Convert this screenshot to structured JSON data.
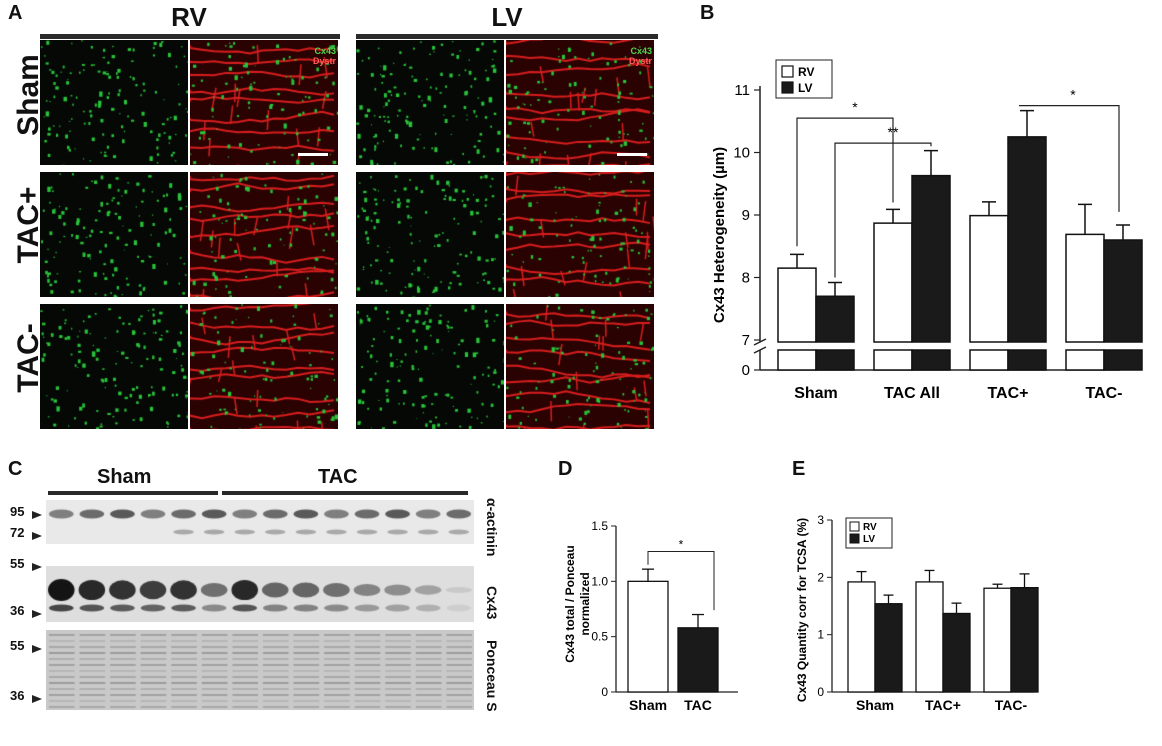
{
  "panels": {
    "A": {
      "letter": "A",
      "columns": [
        "RV",
        "LV"
      ],
      "rows": [
        "Sham",
        "TAC+",
        "TAC-"
      ],
      "legend_top": "Cx43",
      "legend_bottom": "Dystr",
      "colors": {
        "green": "#29c43a",
        "red": "#d81e1e"
      }
    },
    "B": {
      "letter": "B"
    },
    "C": {
      "letter": "C",
      "groups": [
        "Sham",
        "TAC"
      ],
      "mw_markers": [
        "95",
        "72",
        "55",
        "36",
        "55",
        "36"
      ],
      "blot_labels": [
        "α-actinin",
        "Cx43",
        "Ponceau S"
      ]
    },
    "D": {
      "letter": "D"
    },
    "E": {
      "letter": "E"
    }
  },
  "chart_data": [
    {
      "id": "B",
      "type": "bar",
      "categories": [
        "Sham",
        "TAC All",
        "TAC+",
        "TAC-"
      ],
      "series": [
        {
          "name": "RV",
          "color": "#ffffff",
          "values": [
            8.15,
            8.87,
            8.99,
            8.69
          ],
          "errors": [
            0.22,
            0.22,
            0.22,
            0.48
          ]
        },
        {
          "name": "LV",
          "color": "#1a1a1a",
          "values": [
            7.7,
            9.63,
            10.25,
            8.6
          ],
          "errors": [
            0.22,
            0.4,
            0.42,
            0.24
          ]
        }
      ],
      "ylabel": "Cx43 Heterogeneity (µm)",
      "yticks": [
        "0",
        "7",
        "8",
        "9",
        "10",
        "11"
      ],
      "ylim": [
        7,
        11
      ],
      "axis_break": true,
      "legend_position": "top-left",
      "significance": [
        "*",
        "**",
        "*"
      ]
    },
    {
      "id": "D",
      "type": "bar",
      "categories": [
        "Sham",
        "TAC"
      ],
      "values": [
        1.0,
        0.58
      ],
      "errors": [
        0.11,
        0.12
      ],
      "colors": [
        "#ffffff",
        "#1a1a1a"
      ],
      "ylabel": "Cx43 total / Ponceau normalized",
      "ylabel_lines": [
        "Cx43 total / Ponceau",
        "normalized"
      ],
      "yticks": [
        "0",
        "0.5",
        "1.0",
        "1.5"
      ],
      "ylim": [
        0,
        1.5
      ],
      "significance": [
        "*"
      ]
    },
    {
      "id": "E",
      "type": "bar",
      "categories": [
        "Sham",
        "TAC+",
        "TAC-"
      ],
      "series": [
        {
          "name": "RV",
          "color": "#ffffff",
          "values": [
            1.92,
            1.92,
            1.81
          ],
          "errors": [
            0.18,
            0.2,
            0.07
          ]
        },
        {
          "name": "LV",
          "color": "#1a1a1a",
          "values": [
            1.54,
            1.37,
            1.82
          ],
          "errors": [
            0.15,
            0.18,
            0.24
          ]
        }
      ],
      "ylabel": "Cx43 Quantity corr for TCSA (%)",
      "yticks": [
        "0",
        "1",
        "2",
        "3"
      ],
      "ylim": [
        0,
        3
      ],
      "legend_position": "top-left"
    }
  ]
}
